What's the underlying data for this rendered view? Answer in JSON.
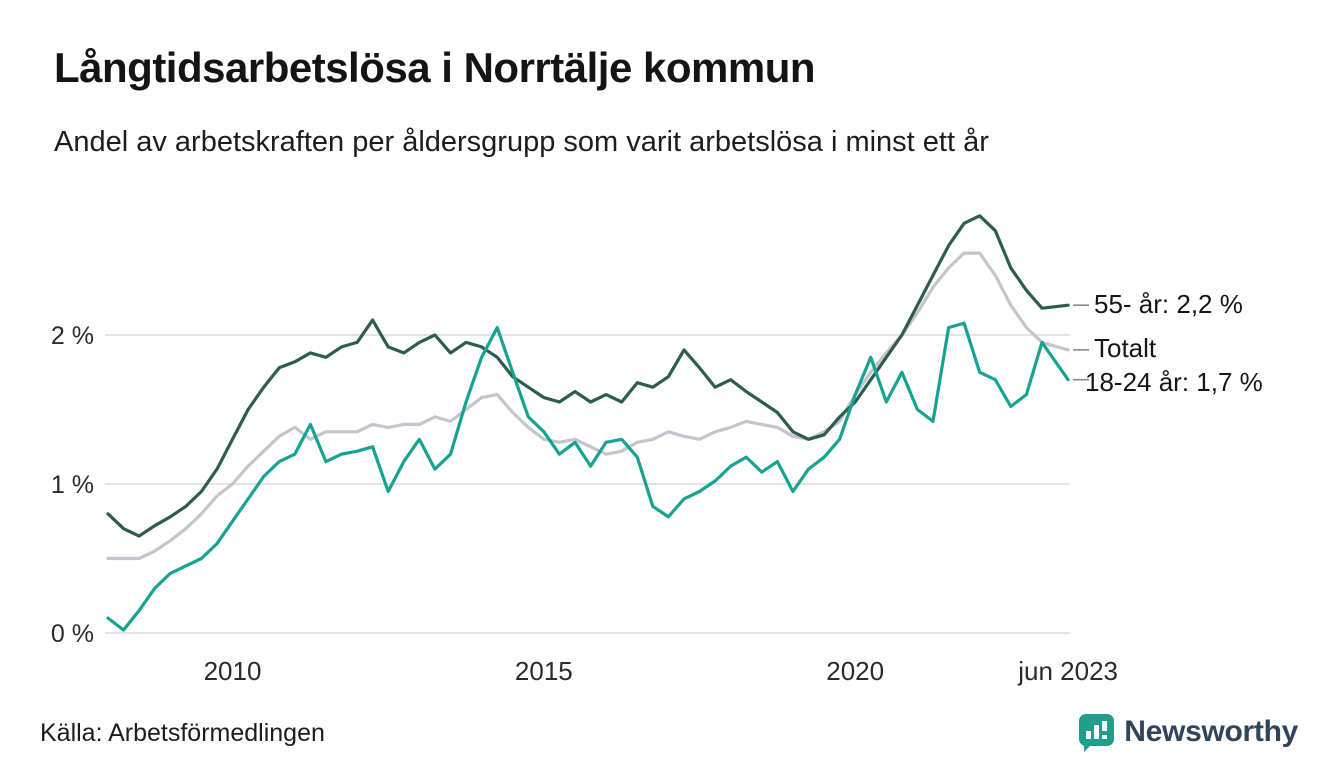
{
  "header": {
    "title": "Långtidsarbetslösa i Norrtälje kommun",
    "subtitle": "Andel av arbetskraften per åldersgrupp som varit arbetslösa i minst ett år"
  },
  "footer": {
    "source": "Källa: Arbetsförmedlingen",
    "brand": "Newsworthy"
  },
  "colors": {
    "grid": "#dcdcdc",
    "tick_text": "#2b2b2b",
    "connector": "#8a8a8a",
    "brand_icon": "#1f9e8c",
    "brand_text": "#31455a"
  },
  "chart_data": {
    "type": "line",
    "title": "Långtidsarbetslösa i Norrtälje kommun",
    "subtitle": "Andel av arbetskraften per åldersgrupp som varit arbetslösa i minst ett år",
    "xlim": [
      2008,
      2023.45
    ],
    "ylim": [
      0,
      3
    ],
    "grid": "horizontal",
    "legend": "end-of-line-labels",
    "x": [
      2008,
      2008.25,
      2008.5,
      2008.75,
      2009,
      2009.25,
      2009.5,
      2009.75,
      2010,
      2010.25,
      2010.5,
      2010.75,
      2011,
      2011.25,
      2011.5,
      2011.75,
      2012,
      2012.25,
      2012.5,
      2012.75,
      2013,
      2013.25,
      2013.5,
      2013.75,
      2014,
      2014.25,
      2014.5,
      2014.75,
      2015,
      2015.25,
      2015.5,
      2015.75,
      2016,
      2016.25,
      2016.5,
      2016.75,
      2017,
      2017.25,
      2017.5,
      2017.75,
      2018,
      2018.25,
      2018.5,
      2018.75,
      2019,
      2019.25,
      2019.5,
      2019.75,
      2020,
      2020.25,
      2020.5,
      2020.75,
      2021,
      2021.25,
      2021.5,
      2021.75,
      2022,
      2022.25,
      2022.5,
      2022.75,
      2023,
      2023.42
    ],
    "series": [
      {
        "name": "Totalt",
        "color": "#c5c6cd",
        "values": [
          0.5,
          0.5,
          0.5,
          0.55,
          0.62,
          0.7,
          0.8,
          0.92,
          1.0,
          1.12,
          1.22,
          1.32,
          1.38,
          1.3,
          1.35,
          1.35,
          1.35,
          1.4,
          1.38,
          1.4,
          1.4,
          1.45,
          1.42,
          1.5,
          1.58,
          1.6,
          1.48,
          1.38,
          1.3,
          1.28,
          1.3,
          1.25,
          1.2,
          1.22,
          1.28,
          1.3,
          1.35,
          1.32,
          1.3,
          1.35,
          1.38,
          1.42,
          1.4,
          1.38,
          1.32,
          1.3,
          1.35,
          1.42,
          1.6,
          1.75,
          1.88,
          2.0,
          2.15,
          2.32,
          2.45,
          2.55,
          2.55,
          2.4,
          2.2,
          2.05,
          1.95,
          1.9
        ]
      },
      {
        "name": "55- år",
        "color": "#2d5d50",
        "values": [
          0.8,
          0.7,
          0.65,
          0.72,
          0.78,
          0.85,
          0.95,
          1.1,
          1.3,
          1.5,
          1.65,
          1.78,
          1.82,
          1.88,
          1.85,
          1.92,
          1.95,
          2.1,
          1.92,
          1.88,
          1.95,
          2.0,
          1.88,
          1.95,
          1.92,
          1.85,
          1.72,
          1.65,
          1.58,
          1.55,
          1.62,
          1.55,
          1.6,
          1.55,
          1.68,
          1.65,
          1.72,
          1.9,
          1.78,
          1.65,
          1.7,
          1.62,
          1.55,
          1.48,
          1.35,
          1.3,
          1.33,
          1.45,
          1.55,
          1.7,
          1.85,
          2.0,
          2.2,
          2.4,
          2.6,
          2.75,
          2.8,
          2.7,
          2.45,
          2.3,
          2.18,
          2.2
        ]
      },
      {
        "name": "18-24 år",
        "color": "#17a392",
        "values": [
          0.1,
          0.02,
          0.15,
          0.3,
          0.4,
          0.45,
          0.5,
          0.6,
          0.75,
          0.9,
          1.05,
          1.15,
          1.2,
          1.4,
          1.15,
          1.2,
          1.22,
          1.25,
          0.95,
          1.15,
          1.3,
          1.1,
          1.2,
          1.55,
          1.85,
          2.05,
          1.75,
          1.45,
          1.35,
          1.2,
          1.28,
          1.12,
          1.28,
          1.3,
          1.18,
          0.85,
          0.78,
          0.9,
          0.95,
          1.02,
          1.12,
          1.18,
          1.08,
          1.15,
          0.95,
          1.1,
          1.18,
          1.3,
          1.6,
          1.85,
          1.55,
          1.75,
          1.5,
          1.42,
          2.05,
          2.08,
          1.75,
          1.7,
          1.52,
          1.6,
          1.95,
          1.7
        ]
      }
    ],
    "labels": [
      {
        "text": "55- år: 2,2 %",
        "value": 2.2
      },
      {
        "text": "Totalt",
        "value": 1.9
      },
      {
        "text": "18-24 år: 1,7 %",
        "value": 1.7
      }
    ],
    "x_ticks": [
      {
        "value": 2010,
        "label": "2010"
      },
      {
        "value": 2015,
        "label": "2015"
      },
      {
        "value": 2020,
        "label": "2020"
      },
      {
        "value": 2023.42,
        "label": "jun 2023"
      }
    ],
    "y_ticks": [
      {
        "value": 0,
        "label": "0 %"
      },
      {
        "value": 1,
        "label": "1 %"
      },
      {
        "value": 2,
        "label": "2 %"
      }
    ]
  }
}
